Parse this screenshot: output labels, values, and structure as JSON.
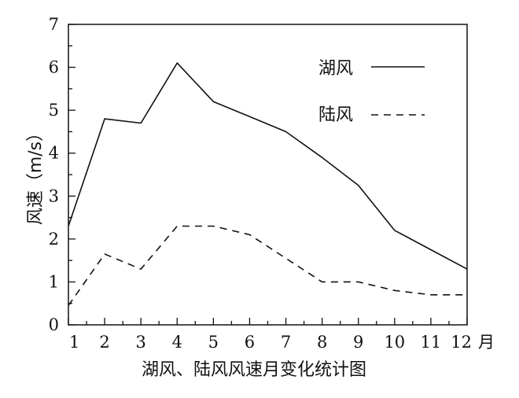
{
  "chart_data": {
    "type": "line",
    "title": "湖风、陆风风速月变化统计图",
    "ylabel": "风速（m/s）",
    "x_unit_label": "月",
    "x": [
      1,
      2,
      3,
      4,
      5,
      6,
      7,
      8,
      9,
      10,
      11,
      12
    ],
    "x_tick_labels": [
      "1",
      "2",
      "3",
      "4",
      "5",
      "6",
      "7",
      "8",
      "9",
      "10",
      "11",
      "12"
    ],
    "y_tick_labels": [
      "0",
      "1",
      "2",
      "3",
      "4",
      "5",
      "6",
      "7"
    ],
    "xlim": [
      1,
      12
    ],
    "ylim": [
      0,
      7
    ],
    "grid": false,
    "legend_position": "top-right",
    "series": [
      {
        "name": "湖风",
        "line_style": "solid",
        "values": [
          2.3,
          4.8,
          4.7,
          6.1,
          5.2,
          4.85,
          4.5,
          3.9,
          3.25,
          2.2,
          1.75,
          1.3
        ]
      },
      {
        "name": "陆风",
        "line_style": "dashed",
        "values": [
          0.45,
          1.65,
          1.3,
          2.3,
          2.3,
          2.1,
          1.55,
          1.0,
          1.0,
          0.8,
          0.7,
          0.7
        ]
      }
    ]
  }
}
